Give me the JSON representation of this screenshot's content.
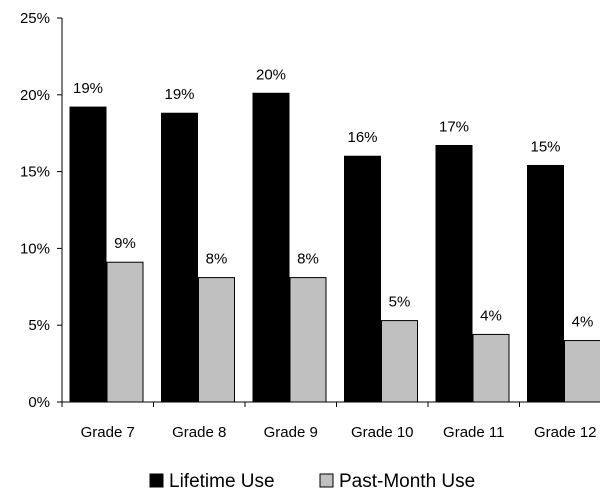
{
  "chart_data": {
    "type": "bar",
    "categories": [
      "Grade 7",
      "Grade 8",
      "Grade 9",
      "Grade 10",
      "Grade 11",
      "Grade 12"
    ],
    "series": [
      {
        "name": "Lifetime Use",
        "color": "#000000",
        "values": [
          19.2,
          18.8,
          20.1,
          16.0,
          16.7,
          15.4
        ],
        "labels": [
          "19%",
          "19%",
          "20%",
          "16%",
          "17%",
          "15%"
        ]
      },
      {
        "name": "Past-Month Use",
        "color": "#c0c0c0",
        "values": [
          9.1,
          8.1,
          8.1,
          5.3,
          4.4,
          4.0
        ],
        "labels": [
          "9%",
          "8%",
          "8%",
          "5%",
          "4%",
          "4%"
        ]
      }
    ],
    "ylim": [
      0,
      25
    ],
    "yticks": [
      0,
      5,
      10,
      15,
      20,
      25
    ],
    "ytick_labels": [
      "0%",
      "5%",
      "10%",
      "15%",
      "20%",
      "25%"
    ],
    "title": "",
    "xlabel": "",
    "ylabel": "",
    "grid": false,
    "legend_position": "bottom"
  }
}
